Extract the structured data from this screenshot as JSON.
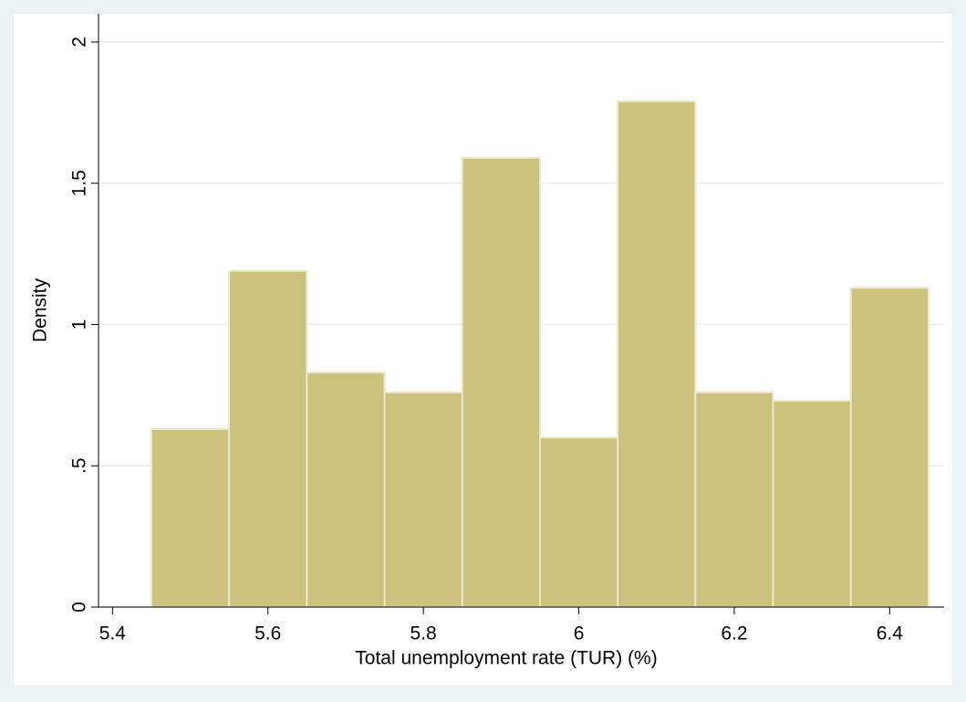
{
  "chart_data": {
    "type": "histogram",
    "xlabel": "Total unemployment rate (TUR) (%)",
    "ylabel": "Density",
    "bins": [
      5.45,
      5.55,
      5.65,
      5.75,
      5.85,
      5.95,
      6.05,
      6.15,
      6.25,
      6.35,
      6.45
    ],
    "values": [
      0.63,
      1.19,
      0.83,
      0.76,
      1.59,
      0.6,
      1.79,
      0.76,
      0.73,
      1.13
    ],
    "color": "#ccc27e",
    "edge_color": "#ebe8cc",
    "xlim": [
      5.382,
      6.47
    ],
    "ylim": [
      0,
      2.1
    ],
    "xticks": [
      5.4,
      5.6,
      5.8,
      6,
      6.2,
      6.4
    ],
    "yticks": [
      0,
      {
        "value": 0.5,
        "label": ".5"
      },
      1,
      1.5,
      2
    ],
    "grid": true
  }
}
